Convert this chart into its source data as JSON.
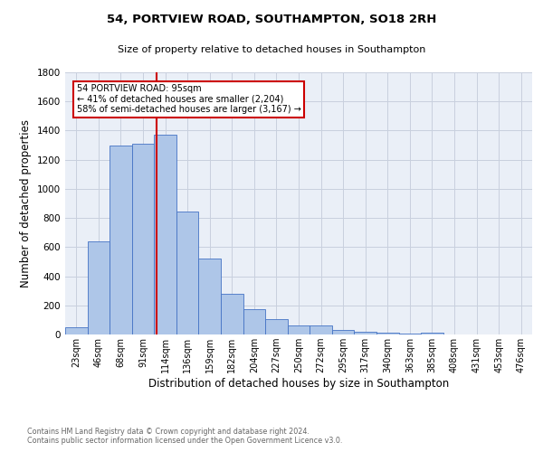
{
  "title1": "54, PORTVIEW ROAD, SOUTHAMPTON, SO18 2RH",
  "title2": "Size of property relative to detached houses in Southampton",
  "xlabel": "Distribution of detached houses by size in Southampton",
  "ylabel": "Number of detached properties",
  "categories": [
    "23sqm",
    "46sqm",
    "68sqm",
    "91sqm",
    "114sqm",
    "136sqm",
    "159sqm",
    "182sqm",
    "204sqm",
    "227sqm",
    "250sqm",
    "272sqm",
    "295sqm",
    "317sqm",
    "340sqm",
    "363sqm",
    "385sqm",
    "408sqm",
    "431sqm",
    "453sqm",
    "476sqm"
  ],
  "values": [
    50,
    640,
    1300,
    1310,
    1370,
    845,
    520,
    280,
    175,
    105,
    65,
    65,
    30,
    20,
    15,
    5,
    15,
    0,
    0,
    0,
    0
  ],
  "bar_color": "#aec6e8",
  "bar_edge_color": "#4472c4",
  "bar_width": 1.0,
  "vline_color": "#cc0000",
  "annotation_text": "54 PORTVIEW ROAD: 95sqm\n← 41% of detached houses are smaller (2,204)\n58% of semi-detached houses are larger (3,167) →",
  "annotation_box_color": "#ffffff",
  "annotation_box_edge": "#cc0000",
  "ylim": [
    0,
    1800
  ],
  "yticks": [
    0,
    200,
    400,
    600,
    800,
    1000,
    1200,
    1400,
    1600,
    1800
  ],
  "grid_color": "#c8d0de",
  "footnote1": "Contains HM Land Registry data © Crown copyright and database right 2024.",
  "footnote2": "Contains public sector information licensed under the Open Government Licence v3.0.",
  "bg_color": "#ffffff",
  "plot_bg_color": "#eaeff7"
}
